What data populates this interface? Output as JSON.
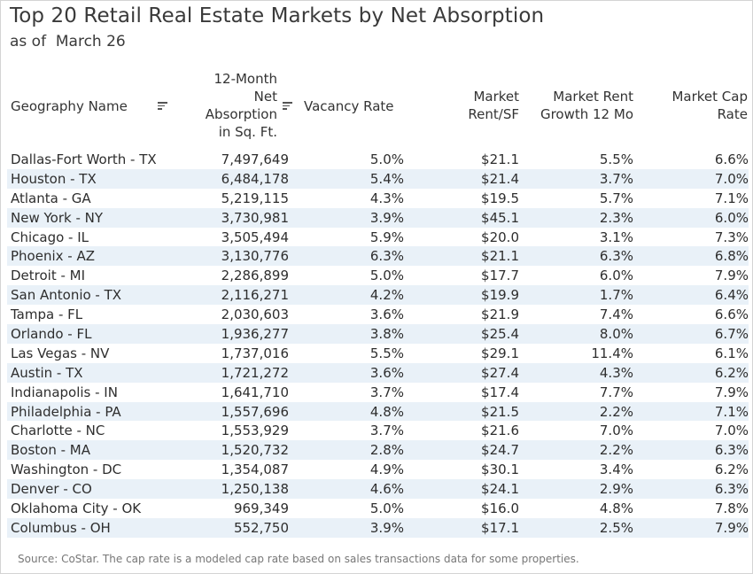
{
  "title": "Top 20 Retail Real Estate Markets by Net Absorption",
  "subtitle": "as of  March 26",
  "headers": {
    "geography": "Geography Name",
    "absorption_lines": [
      "12-Month",
      "Net",
      "Absorption",
      "in Sq. Ft."
    ],
    "vacancy": "Vacancy Rate",
    "rent_lines": [
      "Market",
      "Rent/SF"
    ],
    "growth_lines": [
      "Market Rent",
      "Growth 12 Mo"
    ],
    "cap_lines": [
      "Market Cap",
      "Rate"
    ]
  },
  "rows": [
    {
      "geo": "Dallas-Fort Worth - TX",
      "absorption": "7,497,649",
      "vacancy": "5.0%",
      "rent": "$21.1",
      "growth": "5.5%",
      "cap": "6.6%"
    },
    {
      "geo": "Houston - TX",
      "absorption": "6,484,178",
      "vacancy": "5.4%",
      "rent": "$21.4",
      "growth": "3.7%",
      "cap": "7.0%"
    },
    {
      "geo": "Atlanta - GA",
      "absorption": "5,219,115",
      "vacancy": "4.3%",
      "rent": "$19.5",
      "growth": "5.7%",
      "cap": "7.1%"
    },
    {
      "geo": "New York - NY",
      "absorption": "3,730,981",
      "vacancy": "3.9%",
      "rent": "$45.1",
      "growth": "2.3%",
      "cap": "6.0%"
    },
    {
      "geo": "Chicago - IL",
      "absorption": "3,505,494",
      "vacancy": "5.9%",
      "rent": "$20.0",
      "growth": "3.1%",
      "cap": "7.3%"
    },
    {
      "geo": "Phoenix - AZ",
      "absorption": "3,130,776",
      "vacancy": "6.3%",
      "rent": "$21.1",
      "growth": "6.3%",
      "cap": "6.8%"
    },
    {
      "geo": "Detroit - MI",
      "absorption": "2,286,899",
      "vacancy": "5.0%",
      "rent": "$17.7",
      "growth": "6.0%",
      "cap": "7.9%"
    },
    {
      "geo": "San Antonio - TX",
      "absorption": "2,116,271",
      "vacancy": "4.2%",
      "rent": "$19.9",
      "growth": "1.7%",
      "cap": "6.4%"
    },
    {
      "geo": "Tampa - FL",
      "absorption": "2,030,603",
      "vacancy": "3.6%",
      "rent": "$21.9",
      "growth": "7.4%",
      "cap": "6.6%"
    },
    {
      "geo": "Orlando - FL",
      "absorption": "1,936,277",
      "vacancy": "3.8%",
      "rent": "$25.4",
      "growth": "8.0%",
      "cap": "6.7%"
    },
    {
      "geo": "Las Vegas - NV",
      "absorption": "1,737,016",
      "vacancy": "5.5%",
      "rent": "$29.1",
      "growth": "11.4%",
      "cap": "6.1%"
    },
    {
      "geo": "Austin - TX",
      "absorption": "1,721,272",
      "vacancy": "3.6%",
      "rent": "$27.4",
      "growth": "4.3%",
      "cap": "6.2%"
    },
    {
      "geo": "Indianapolis - IN",
      "absorption": "1,641,710",
      "vacancy": "3.7%",
      "rent": "$17.4",
      "growth": "7.7%",
      "cap": "7.9%"
    },
    {
      "geo": "Philadelphia - PA",
      "absorption": "1,557,696",
      "vacancy": "4.8%",
      "rent": "$21.5",
      "growth": "2.2%",
      "cap": "7.1%"
    },
    {
      "geo": "Charlotte - NC",
      "absorption": "1,553,929",
      "vacancy": "3.7%",
      "rent": "$21.6",
      "growth": "7.0%",
      "cap": "7.0%"
    },
    {
      "geo": "Boston - MA",
      "absorption": "1,520,732",
      "vacancy": "2.8%",
      "rent": "$24.7",
      "growth": "2.2%",
      "cap": "6.3%"
    },
    {
      "geo": "Washington - DC",
      "absorption": "1,354,087",
      "vacancy": "4.9%",
      "rent": "$30.1",
      "growth": "3.4%",
      "cap": "6.2%"
    },
    {
      "geo": "Denver - CO",
      "absorption": "1,250,138",
      "vacancy": "4.6%",
      "rent": "$24.1",
      "growth": "2.9%",
      "cap": "6.3%"
    },
    {
      "geo": "Oklahoma City - OK",
      "absorption": "969,349",
      "vacancy": "5.0%",
      "rent": "$16.0",
      "growth": "4.8%",
      "cap": "7.8%"
    },
    {
      "geo": "Columbus - OH",
      "absorption": "552,750",
      "vacancy": "3.9%",
      "rent": "$17.1",
      "growth": "2.5%",
      "cap": "7.9%"
    }
  ],
  "colors": {
    "stripe": "#e9f1f8",
    "text": "#2e2e2e",
    "footnote": "#777777"
  },
  "footnote": "Source: CoStar. The cap rate is a modeled cap rate based on sales transactions data for some properties."
}
